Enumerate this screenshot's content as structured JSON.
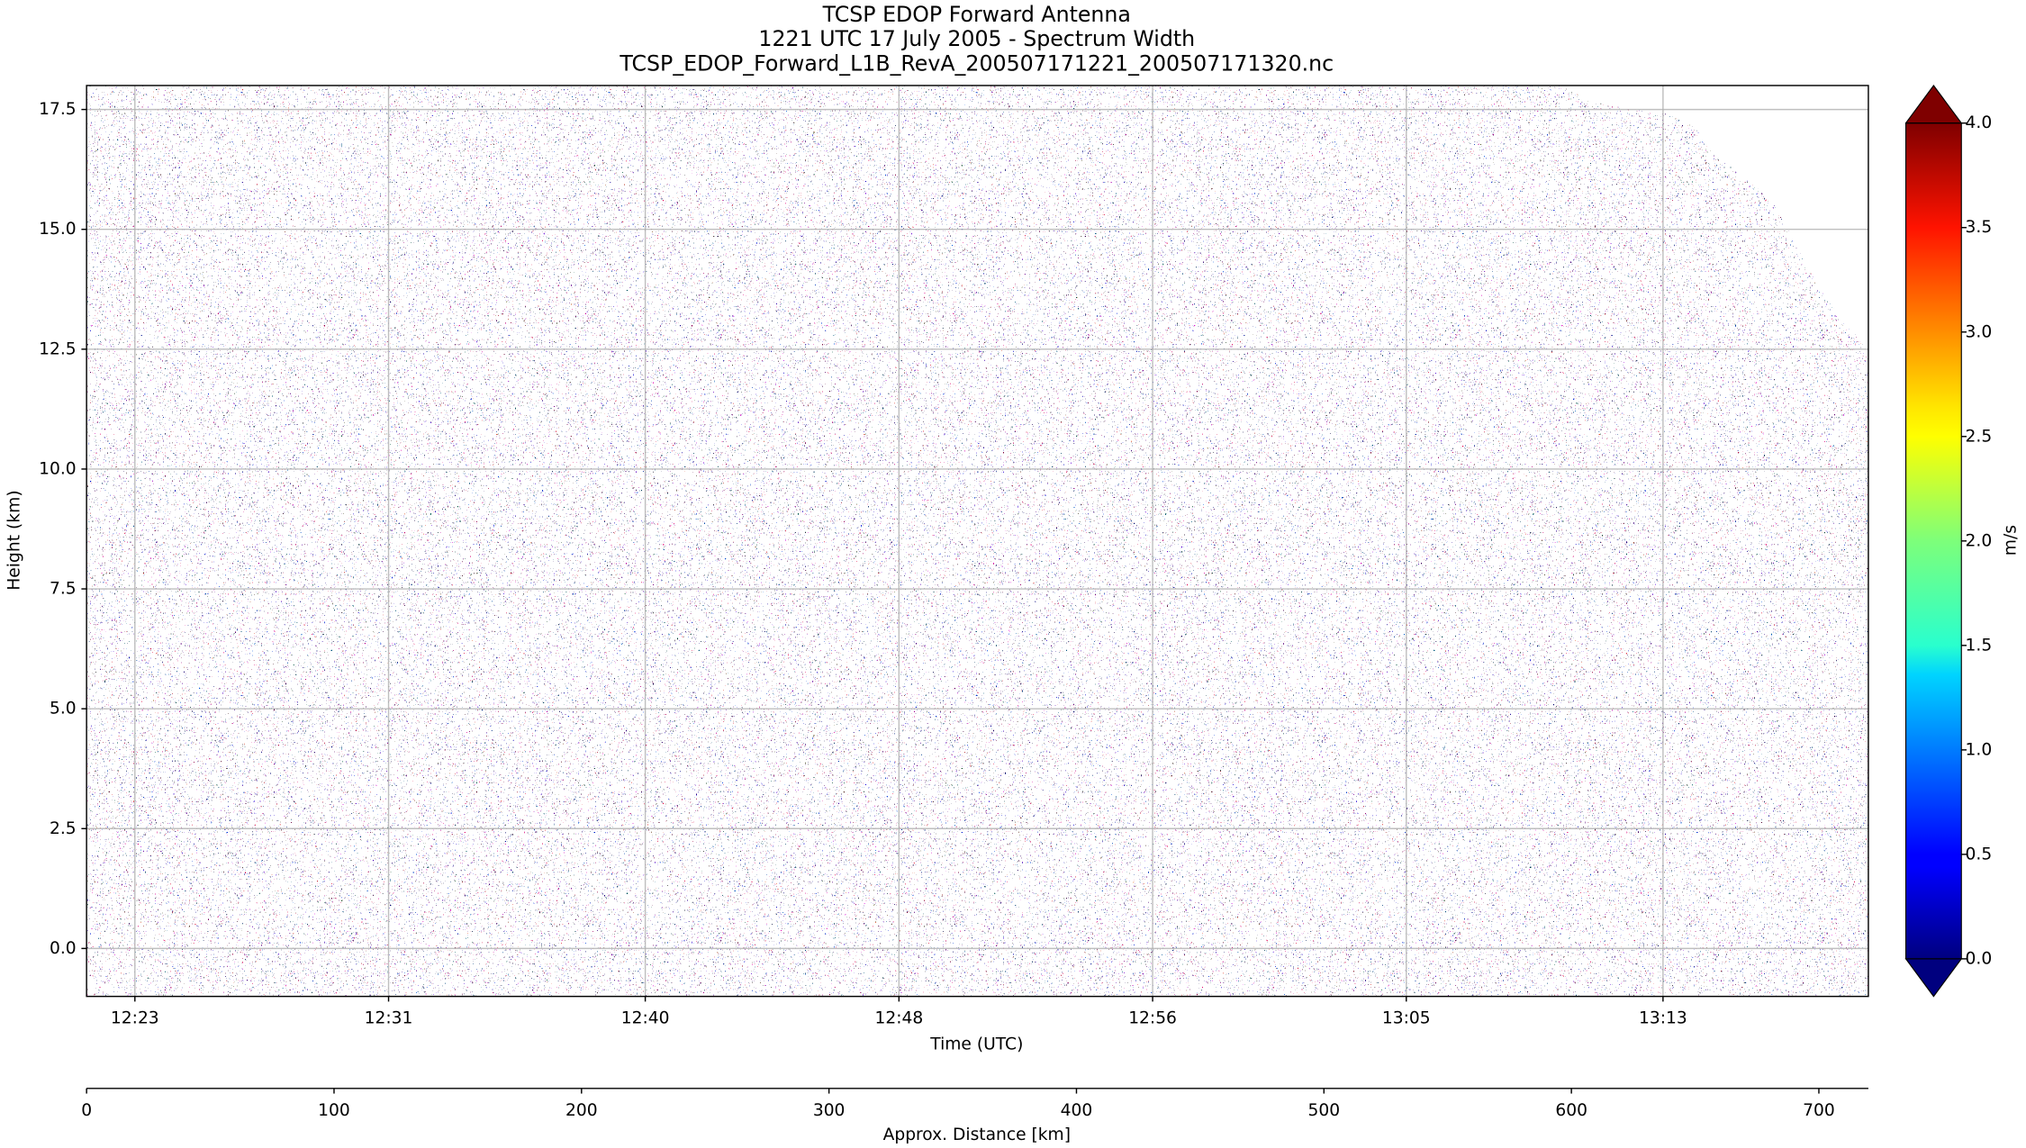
{
  "chart_data": {
    "type": "heatmap",
    "title": [
      "TCSP EDOP Forward Antenna",
      "1221 UTC 17 July 2005 - Spectrum Width",
      "TCSP_EDOP_Forward_L1B_RevA_200507171221_200507171320.nc"
    ],
    "xlabel": "Time (UTC)",
    "ylabel": "Height (km)",
    "xlim": [
      741,
      800
    ],
    "xticks": [
      {
        "value": 742.6,
        "label": "12:23"
      },
      {
        "value": 751.0,
        "label": "12:31"
      },
      {
        "value": 759.5,
        "label": "12:40"
      },
      {
        "value": 767.9,
        "label": "12:48"
      },
      {
        "value": 776.3,
        "label": "12:56"
      },
      {
        "value": 784.7,
        "label": "13:05"
      },
      {
        "value": 793.2,
        "label": "13:13"
      }
    ],
    "ylim": [
      -1,
      18
    ],
    "yticks": [
      {
        "value": 0,
        "label": "0.0"
      },
      2.5,
      {
        "value": 5,
        "label": "5.0"
      },
      7.5,
      {
        "value": 10,
        "label": "10.0"
      },
      12.5,
      {
        "value": 15,
        "label": "15.0"
      },
      17.5
    ],
    "x2label": "Approx. Distance [km]",
    "x2lim": [
      0,
      720
    ],
    "x2ticks": [
      0,
      100,
      200,
      300,
      400,
      500,
      600,
      700
    ],
    "colorbar": {
      "label": "m/s",
      "colormap": "jet",
      "clim": [
        0,
        4
      ],
      "ticks": [
        {
          "value": 0,
          "label": "0.0"
        },
        0.5,
        {
          "value": 1,
          "label": "1.0"
        },
        1.5,
        {
          "value": 2,
          "label": "2.0"
        },
        2.5,
        {
          "value": 3,
          "label": "3.0"
        },
        3.5,
        {
          "value": 4,
          "label": "4.0"
        }
      ]
    },
    "grid": true
  }
}
